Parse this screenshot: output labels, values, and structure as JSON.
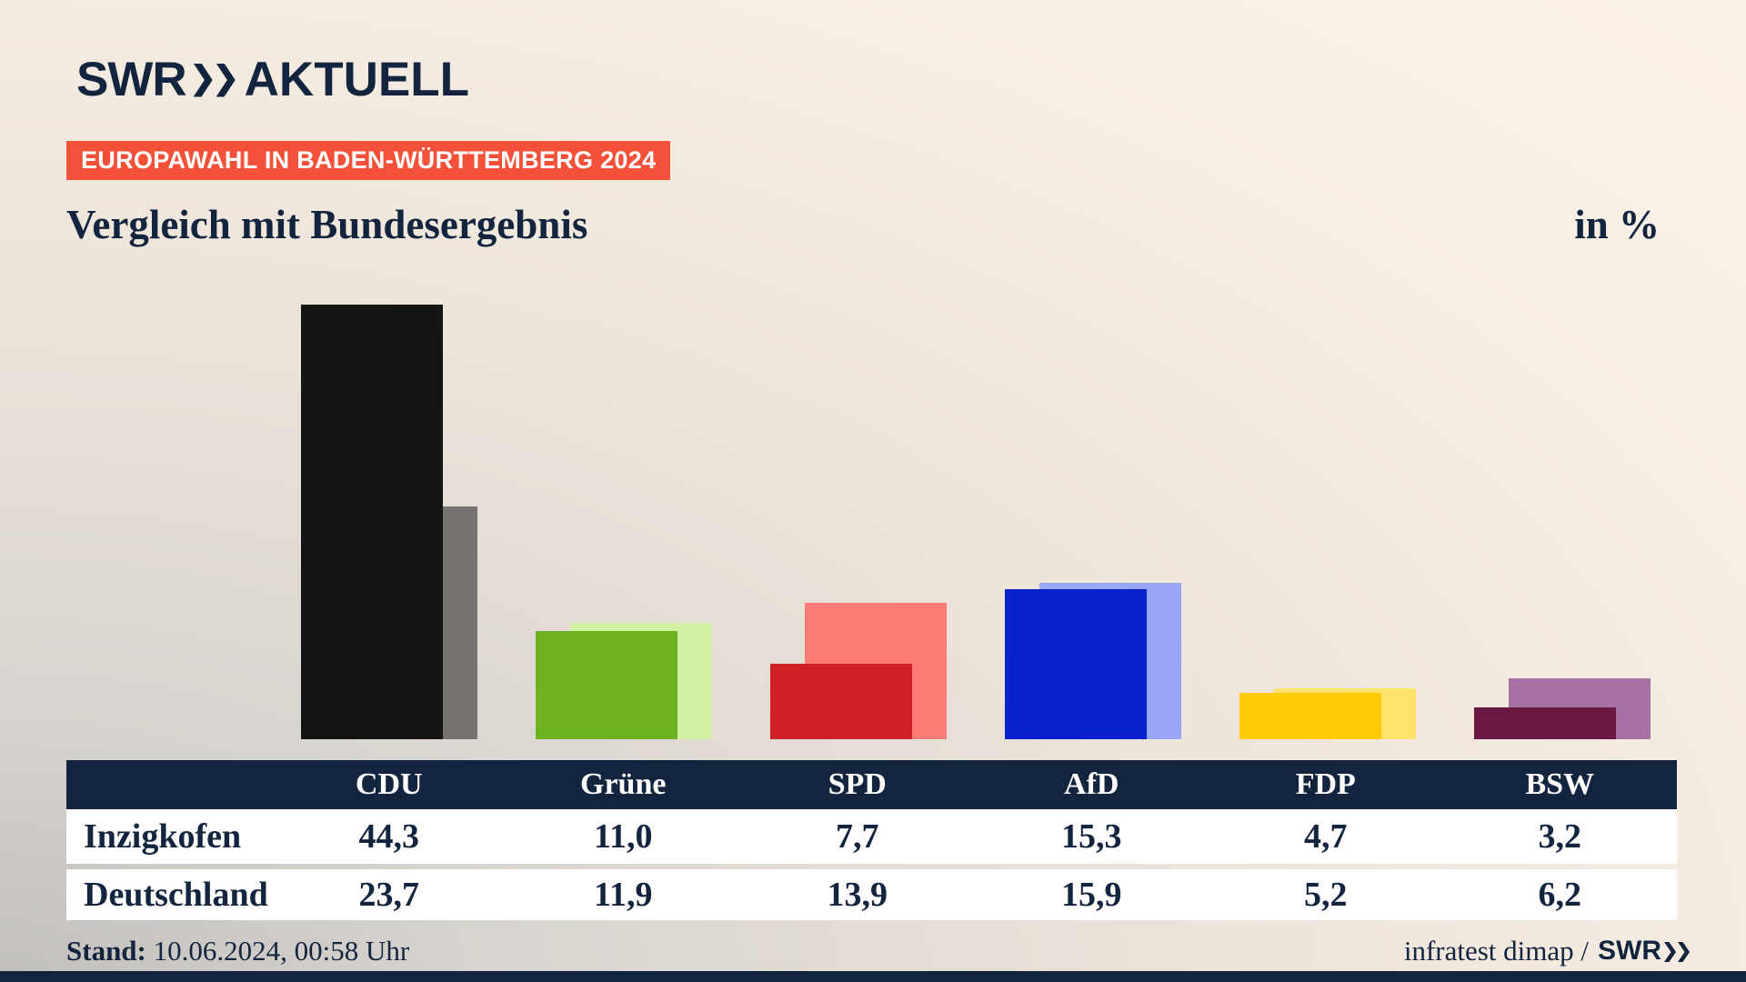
{
  "header": {
    "logo_swr": "SWR",
    "logo_suffix": "AKTUELL",
    "badge": "EUROPAWAHL IN BADEN-WÜRTTEMBERG 2024"
  },
  "title": {
    "text": "Vergleich mit Bundesergebnis",
    "unit": "in %"
  },
  "chart_data": {
    "type": "bar",
    "title": "Vergleich mit Bundesergebnis",
    "unit": "%",
    "categories": [
      "CDU",
      "Grüne",
      "SPD",
      "AfD",
      "FDP",
      "BSW"
    ],
    "series": [
      {
        "name": "Inzigkofen",
        "values": [
          44.3,
          11.0,
          7.7,
          15.3,
          4.7,
          3.2
        ],
        "colors": [
          "#141413",
          "#6db223",
          "#d02025",
          "#0a22cc",
          "#ffcb05",
          "#6b1842"
        ]
      },
      {
        "name": "Deutschland",
        "values": [
          23.7,
          11.9,
          13.9,
          15.9,
          5.2,
          6.2
        ],
        "colors": [
          "#767370",
          "#d2f0a4",
          "#fb7d75",
          "#97a6f6",
          "#ffe26b",
          "#a571a3"
        ]
      }
    ],
    "ylim": [
      0,
      46
    ],
    "layout": {
      "grid": false,
      "axes_hidden": true,
      "legend": "table-below",
      "bar_style": "overlapping-offset-pairs"
    }
  },
  "table": {
    "columns": [
      "CDU",
      "Grüne",
      "SPD",
      "AfD",
      "FDP",
      "BSW"
    ],
    "rows": [
      {
        "label": "Inzigkofen",
        "values": [
          "44,3",
          "11,0",
          "7,7",
          "15,3",
          "4,7",
          "3,2"
        ]
      },
      {
        "label": "Deutschland",
        "values": [
          "23,7",
          "11,9",
          "13,9",
          "15,9",
          "5,2",
          "6,2"
        ]
      }
    ]
  },
  "footer": {
    "stand_label": "Stand:",
    "stand_value": " 10.06.2024, 00:58 Uhr",
    "source": "infratest dimap /",
    "source_brand": "SWR"
  },
  "colors": {
    "navy": "#13243f",
    "badge_red": "#f4503a",
    "row_bg": "#ffffff"
  }
}
